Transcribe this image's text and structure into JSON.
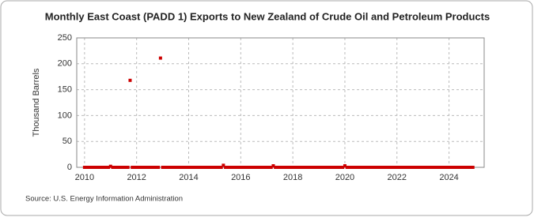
{
  "chart_data": {
    "type": "scatter",
    "title": "Monthly East Coast (PADD 1) Exports to New Zealand of Crude Oil and Petroleum Products",
    "y_label": "Thousand Barrels",
    "source": "Source: U.S. Energy Information Administration",
    "series": [
      {
        "color": "#cc0000",
        "x": [
          2010,
          2010.083,
          2010.167,
          2010.25,
          2010.333,
          2010.417,
          2010.5,
          2010.583,
          2010.667,
          2010.75,
          2010.833,
          2010.917,
          2011,
          2011.083,
          2011.167,
          2011.25,
          2011.333,
          2011.417,
          2011.5,
          2011.583,
          2011.667,
          2011.75,
          2011.833,
          2011.917,
          2012,
          2012.083,
          2012.167,
          2012.25,
          2012.333,
          2012.417,
          2012.5,
          2012.583,
          2012.667,
          2012.75,
          2012.833,
          2012.917,
          2013,
          2013.083,
          2013.167,
          2013.25,
          2013.333,
          2013.417,
          2013.5,
          2013.583,
          2013.667,
          2013.75,
          2013.833,
          2013.917,
          2014,
          2014.083,
          2014.167,
          2014.25,
          2014.333,
          2014.417,
          2014.5,
          2014.583,
          2014.667,
          2014.75,
          2014.833,
          2014.917,
          2015,
          2015.083,
          2015.167,
          2015.25,
          2015.333,
          2015.417,
          2015.5,
          2015.583,
          2015.667,
          2015.75,
          2015.833,
          2015.917,
          2016,
          2016.083,
          2016.167,
          2016.25,
          2016.333,
          2016.417,
          2016.5,
          2016.583,
          2016.667,
          2016.75,
          2016.833,
          2016.917,
          2017,
          2017.083,
          2017.167,
          2017.25,
          2017.333,
          2017.417,
          2017.5,
          2017.583,
          2017.667,
          2017.75,
          2017.833,
          2017.917,
          2018,
          2018.083,
          2018.167,
          2018.25,
          2018.333,
          2018.417,
          2018.5,
          2018.583,
          2018.667,
          2018.75,
          2018.833,
          2018.917,
          2019,
          2019.083,
          2019.167,
          2019.25,
          2019.333,
          2019.417,
          2019.5,
          2019.583,
          2019.667,
          2019.75,
          2019.833,
          2019.917,
          2020,
          2020.083,
          2020.167,
          2020.25,
          2020.333,
          2020.417,
          2020.5,
          2020.583,
          2020.667,
          2020.75,
          2020.833,
          2020.917,
          2021,
          2021.083,
          2021.167,
          2021.25,
          2021.333,
          2021.417,
          2021.5,
          2021.583,
          2021.667,
          2021.75,
          2021.833,
          2021.917,
          2022,
          2022.083,
          2022.167,
          2022.25,
          2022.333,
          2022.417,
          2022.5,
          2022.583,
          2022.667,
          2022.75,
          2022.833,
          2022.917,
          2023,
          2023.083,
          2023.167,
          2023.25,
          2023.333,
          2023.417,
          2023.5,
          2023.583,
          2023.667,
          2023.75,
          2023.833,
          2023.917,
          2024,
          2024.083,
          2024.167,
          2024.25,
          2024.333,
          2024.417,
          2024.5,
          2024.583,
          2024.667,
          2024.75,
          2024.833,
          2024.917
        ],
        "values": [
          0,
          0,
          0,
          0,
          0,
          0,
          0,
          0,
          0,
          0,
          0,
          0,
          2,
          0,
          0,
          0,
          0,
          0,
          0,
          0,
          0,
          168,
          0,
          0,
          0,
          0,
          0,
          0,
          0,
          0,
          0,
          0,
          0,
          0,
          0,
          211,
          0,
          0,
          0,
          0,
          0,
          0,
          0,
          0,
          0,
          0,
          0,
          0,
          0,
          0,
          0,
          0,
          0,
          0,
          0,
          0,
          0,
          0,
          0,
          0,
          0,
          0,
          0,
          0,
          4,
          0,
          0,
          0,
          0,
          0,
          0,
          0,
          0,
          0,
          0,
          0,
          0,
          0,
          0,
          0,
          0,
          0,
          0,
          0,
          0,
          0,
          0,
          3,
          0,
          0,
          0,
          0,
          0,
          0,
          0,
          0,
          0,
          0,
          0,
          0,
          0,
          0,
          0,
          0,
          0,
          0,
          0,
          0,
          0,
          0,
          0,
          0,
          0,
          0,
          0,
          0,
          0,
          0,
          0,
          0,
          3,
          0,
          0,
          0,
          0,
          0,
          0,
          0,
          0,
          0,
          0,
          0,
          0,
          0,
          0,
          0,
          0,
          0,
          0,
          0,
          0,
          0,
          0,
          0,
          0,
          0,
          0,
          0,
          0,
          0,
          0,
          0,
          0,
          0,
          0,
          0,
          0,
          0,
          0,
          0,
          0,
          0,
          0,
          0,
          0,
          0,
          0,
          0,
          0,
          0,
          0,
          0,
          0,
          0,
          0,
          0,
          0,
          0,
          0,
          0
        ]
      }
    ],
    "xlim": [
      2009.7,
      2025.35
    ],
    "xticks": [
      2010,
      2012,
      2014,
      2016,
      2018,
      2020,
      2022,
      2024
    ],
    "ylim": [
      0,
      250
    ],
    "yticks": [
      0,
      50,
      100,
      150,
      200,
      250
    ],
    "grid": true
  }
}
